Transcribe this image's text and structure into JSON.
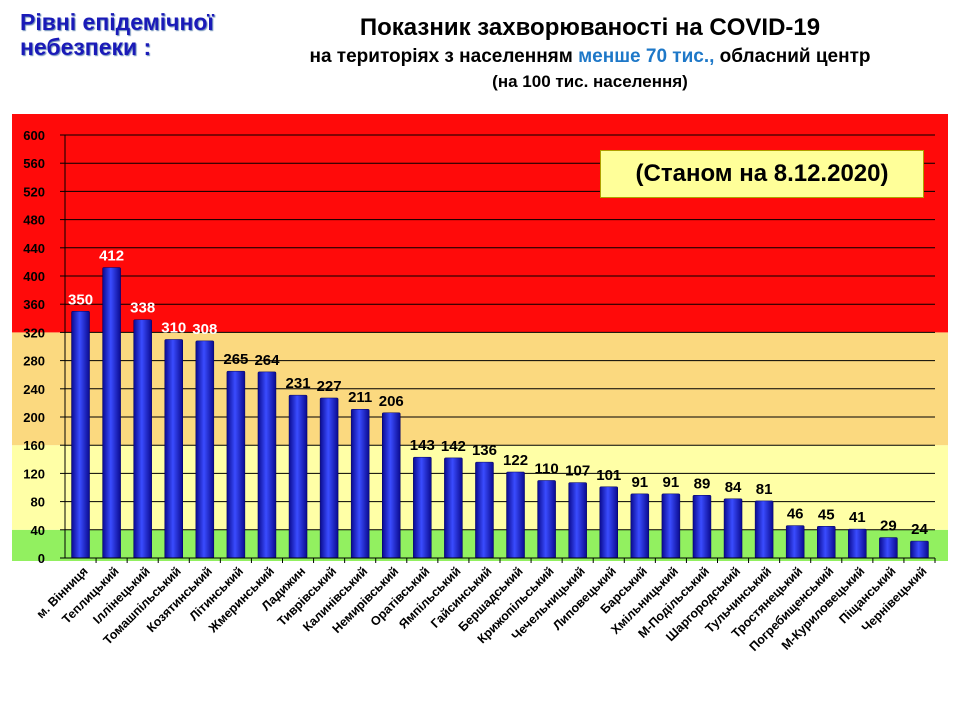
{
  "levels_title": "Рівні епідемічної небезпеки :",
  "date_note": "(Станом на 8.12.2020)",
  "colors": {
    "red": "#ff0a0a",
    "orange": "#fbd97f",
    "yellow": "#ffffa6",
    "green": "#92f060",
    "bar": "#1a1ad0",
    "accent": "#1e78c8"
  },
  "chart_data": {
    "type": "bar",
    "title": "Показник захворюваності на COVID-19",
    "subtitle_parts": [
      "на територіях з населенням ",
      "менше 70 тис.,",
      " обласний центр"
    ],
    "subtitle2": "(на 100  тис. населення)",
    "xlabel": "",
    "ylabel": "",
    "ylim": [
      0,
      600
    ],
    "yticks": [
      0,
      40,
      80,
      120,
      160,
      200,
      240,
      280,
      320,
      360,
      400,
      440,
      480,
      520,
      560,
      600
    ],
    "grid": true,
    "bands": [
      {
        "from": 0,
        "to": 40,
        "color": "#92f060"
      },
      {
        "from": 40,
        "to": 160,
        "color": "#ffffa6"
      },
      {
        "from": 160,
        "to": 320,
        "color": "#fbd97f"
      },
      {
        "from": 320,
        "to": 600,
        "color": "#ff0a0a"
      }
    ],
    "categories": [
      "м. Вінниця",
      "Теплицький",
      "Іллінецький",
      "Томашпільський",
      "Козятинський",
      "Літинський",
      "Жмеринський",
      "Ладижин",
      "Тиврівський",
      "Калинівський",
      "Немирівський",
      "Оратівський",
      "Ямпільський",
      "Гайсинський",
      "Бершадський",
      "Крижопільський",
      "Чечельницький",
      "Липовецький",
      "Барський",
      "Хмільницький",
      "М-Подільський",
      "Шаргородський",
      "Тульчинський",
      "Тростянецький",
      "Погребищенський",
      "М-Куриловецький",
      "Піщанський",
      "Чернівецький"
    ],
    "values": [
      350,
      412,
      338,
      310,
      308,
      265,
      264,
      231,
      227,
      211,
      206,
      143,
      142,
      136,
      122,
      110,
      107,
      101,
      91,
      91,
      89,
      84,
      81,
      46,
      45,
      41,
      29,
      24
    ]
  }
}
